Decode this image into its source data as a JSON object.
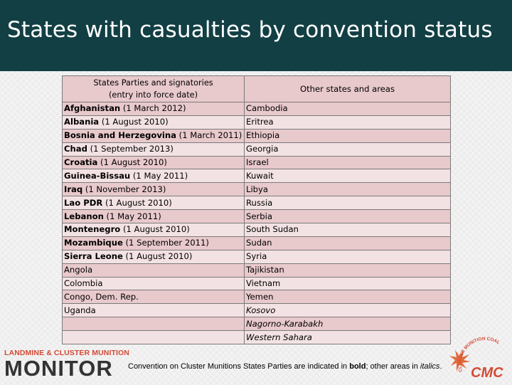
{
  "title": "States with casualties by convention status",
  "table": {
    "header_left_line1": "States Parties and signatories",
    "header_left_line2": "(entry into force date)",
    "header_right": "Other states and areas",
    "rows": [
      {
        "left_name": "Afghanistan",
        "left_date": "(1 March 2012)",
        "left_bold": true,
        "right": "Cambodia",
        "right_italic": false
      },
      {
        "left_name": "Albania",
        "left_date": "(1 August 2010)",
        "left_bold": true,
        "right": "Eritrea",
        "right_italic": false
      },
      {
        "left_name": "Bosnia and Herzegovina",
        "left_date": "(1 March 2011)",
        "left_bold": true,
        "right": "Ethiopia",
        "right_italic": false
      },
      {
        "left_name": "Chad",
        "left_date": "(1 September 2013)",
        "left_bold": true,
        "right": "Georgia",
        "right_italic": false
      },
      {
        "left_name": "Croatia",
        "left_date": "(1 August 2010)",
        "left_bold": true,
        "right": "Israel",
        "right_italic": false
      },
      {
        "left_name": "Guinea-Bissau",
        "left_date": "(1 May 2011)",
        "left_bold": true,
        "right": "Kuwait",
        "right_italic": false
      },
      {
        "left_name": "Iraq",
        "left_date": "(1 November 2013)",
        "left_bold": true,
        "right": "Libya",
        "right_italic": false
      },
      {
        "left_name": "Lao PDR",
        "left_date": "(1 August 2010)",
        "left_bold": true,
        "right": "Russia",
        "right_italic": false
      },
      {
        "left_name": "Lebanon",
        "left_date": "(1 May 2011)",
        "left_bold": true,
        "right": "Serbia",
        "right_italic": false
      },
      {
        "left_name": "Montenegro",
        "left_date": "(1 August 2010)",
        "left_bold": true,
        "right": "South Sudan",
        "right_italic": false
      },
      {
        "left_name": "Mozambique",
        "left_date": "(1 September 2011)",
        "left_bold": true,
        "right": "Sudan",
        "right_italic": false
      },
      {
        "left_name": "Sierra Leone",
        "left_date": "(1 August 2010)",
        "left_bold": true,
        "right": "Syria",
        "right_italic": false
      },
      {
        "left_name": "Angola",
        "left_date": "",
        "left_bold": false,
        "right": "Tajikistan",
        "right_italic": false
      },
      {
        "left_name": "Colombia",
        "left_date": "",
        "left_bold": false,
        "right": "Vietnam",
        "right_italic": false
      },
      {
        "left_name": "Congo, Dem. Rep.",
        "left_date": "",
        "left_bold": false,
        "right": "Yemen",
        "right_italic": false
      },
      {
        "left_name": "Uganda",
        "left_date": "",
        "left_bold": false,
        "right": "Kosovo",
        "right_italic": true
      },
      {
        "left_name": "",
        "left_date": "",
        "left_bold": false,
        "right": "Nagorno-Karabakh",
        "right_italic": true
      },
      {
        "left_name": "",
        "left_date": "",
        "left_bold": false,
        "right": "Western Sahara",
        "right_italic": true
      }
    ]
  },
  "footnote": {
    "part1": "Convention on Cluster Munitions States Parties are indicated in ",
    "bold": "bold",
    "part2": "; other areas in ",
    "italic": "italics",
    "part3": "."
  },
  "logo_left": {
    "top": "LANDMINE & CLUSTER MUNITION",
    "bottom": "MONITOR"
  },
  "logo_right": {
    "arc": "CLUSTER MUNITION COALITION",
    "letters": "CMC"
  },
  "colors": {
    "title_bar": "#123f44",
    "row_odd": "#e8c9cc",
    "row_even": "#f3e2e4",
    "logo_red": "#d44a36",
    "logo_dark": "#333333"
  }
}
